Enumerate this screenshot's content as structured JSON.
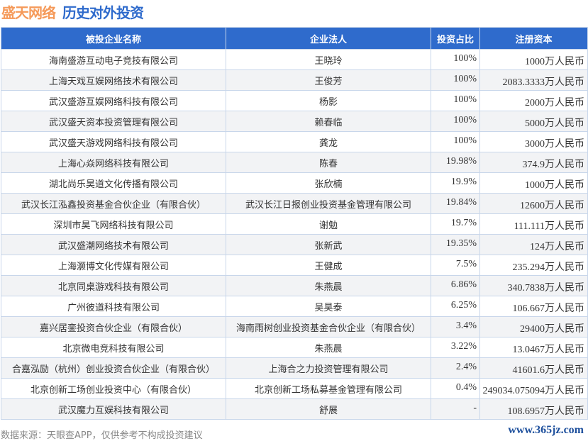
{
  "header": {
    "brand": "盛天网络",
    "title": "历史对外投资"
  },
  "table": {
    "columns": [
      "被投企业名称",
      "企业法人",
      "投资占比",
      "注册资本"
    ],
    "rows": [
      [
        "海南盛游互动电子竞技有限公司",
        "王晓玲",
        "100%",
        "1000万人民币"
      ],
      [
        "上海天戏互娱网络技术有限公司",
        "王俊芳",
        "100%",
        "2083.3333万人民币"
      ],
      [
        "武汉盛游互娱网络科技有限公司",
        "杨影",
        "100%",
        "2000万人民币"
      ],
      [
        "武汉盛天资本投资管理有限公司",
        "赖春临",
        "100%",
        "5000万人民币"
      ],
      [
        "武汉盛天游戏网络科技有限公司",
        "龚龙",
        "100%",
        "3000万人民币"
      ],
      [
        "上海心焱网络科技有限公司",
        "陈春",
        "19.98%",
        "374.9万人民币"
      ],
      [
        "湖北尚乐昊道文化传播有限公司",
        "张欣楠",
        "19.9%",
        "1000万人民币"
      ],
      [
        "武汉长江泓鑫投资基金合伙企业（有限合伙）",
        "武汉长江日报创业投资基金管理有限公司",
        "19.84%",
        "12600万人民币"
      ],
      [
        "深圳市昊飞网络科技有限公司",
        "谢勉",
        "19.7%",
        "111.111万人民币"
      ],
      [
        "武汉盛潮网络技术有限公司",
        "张新武",
        "19.35%",
        "124万人民币"
      ],
      [
        "上海灏博文化传媒有限公司",
        "王健成",
        "7.5%",
        "235.294万人民币"
      ],
      [
        "北京同桌游戏科技有限公司",
        "朱燕晨",
        "6.86%",
        "340.7838万人民币"
      ],
      [
        "广州彼道科技有限公司",
        "吴昊泰",
        "6.25%",
        "106.667万人民币"
      ],
      [
        "嘉兴居銮投资合伙企业（有限合伙）",
        "海南雨树创业投资基金合伙企业（有限合伙）",
        "3.4%",
        "29400万人民币"
      ],
      [
        "北京微电竞科技有限公司",
        "朱燕晨",
        "3.22%",
        "13.0467万人民币"
      ],
      [
        "合嘉泓励（杭州）创业投资合伙企业（有限合伙）",
        "上海合之力投资管理有限公司",
        "2.4%",
        "41601.6万人民币"
      ],
      [
        "北京创新工场创业投资中心（有限合伙）",
        "北京创新工场私募基金管理有限公司",
        "0.4%",
        "249034.075094万人民币"
      ],
      [
        "武汉魔力互娱科技有限公司",
        "舒展",
        "-",
        "108.6957万人民币"
      ]
    ]
  },
  "footer": {
    "source": "数据来源：天眼查APP，仅供参考不构成投资建议",
    "site": "www.365jz.com"
  },
  "colors": {
    "header_bg": "#2f6bcc",
    "brand": "#f59a5a"
  }
}
